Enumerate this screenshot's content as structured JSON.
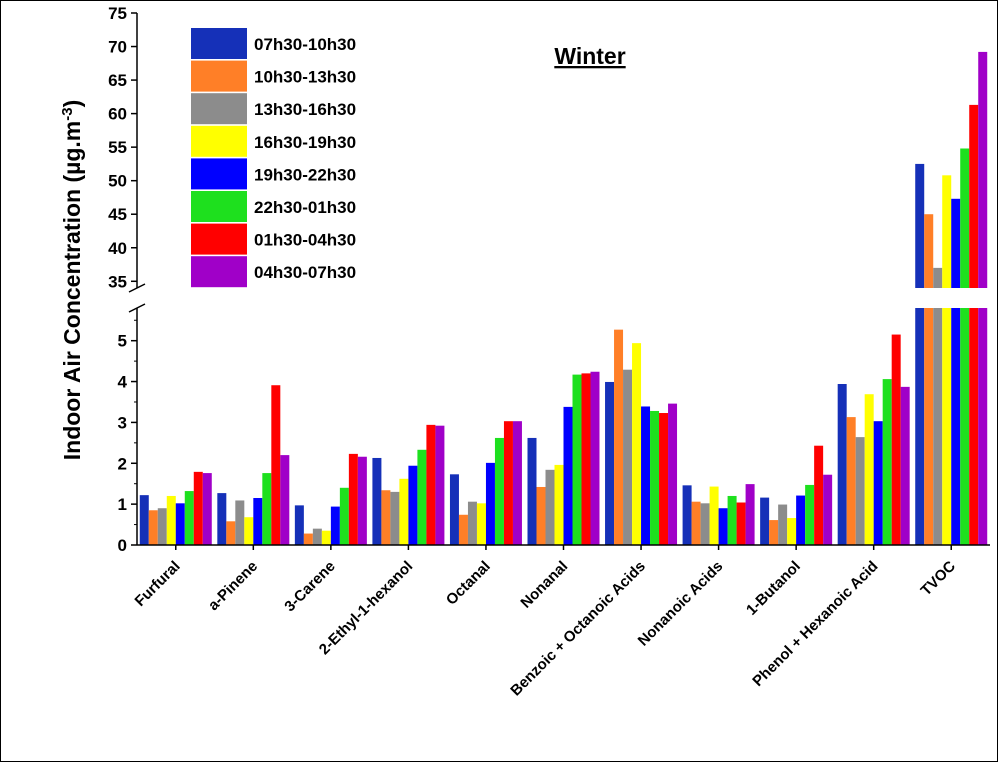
{
  "chart_data": {
    "type": "bar",
    "title": "Winter",
    "ylabel": "Indoor Air Concentration (µg.m",
    "ylabel_superscript": "-3",
    "ylabel_suffix": ")",
    "y_axis_break": true,
    "ylim_lower": [
      0,
      5.8
    ],
    "ylim_upper": [
      34,
      75
    ],
    "yticks_lower": [
      0,
      1,
      2,
      3,
      4,
      5
    ],
    "yticks_upper": [
      35,
      40,
      45,
      50,
      55,
      60,
      65,
      70,
      75
    ],
    "legend_position": "top-left",
    "categories": [
      "Furfural",
      "a-Pinene",
      "3-Carene",
      "2-Ethyl-1-hexanol",
      "Octanal",
      "Nonanal",
      "Benzoic + Octanoic Acids",
      "Nonanoic Acids",
      "1-Butanol",
      "Phenol + Hexanoic Acid",
      "TVOC"
    ],
    "series": [
      {
        "name": "07h30-10h30",
        "color": "#1530b8",
        "values": [
          1.22,
          1.27,
          0.97,
          2.13,
          1.73,
          2.62,
          3.99,
          1.46,
          1.16,
          3.94,
          52.5
        ]
      },
      {
        "name": "10h30-13h30",
        "color": "#ff7f27",
        "values": [
          0.85,
          0.58,
          0.28,
          1.34,
          0.74,
          1.42,
          5.27,
          1.06,
          0.61,
          3.13,
          45.0
        ]
      },
      {
        "name": "13h30-16h30",
        "color": "#8c8c8c",
        "values": [
          0.9,
          1.09,
          0.4,
          1.3,
          1.06,
          1.84,
          4.29,
          1.02,
          0.99,
          2.64,
          37.0
        ]
      },
      {
        "name": "16h30-19h30",
        "color": "#ffff00",
        "values": [
          1.2,
          0.68,
          0.35,
          1.62,
          1.02,
          1.96,
          4.94,
          1.43,
          0.66,
          3.69,
          50.8
        ]
      },
      {
        "name": "19h30-22h30",
        "color": "#0000ff",
        "values": [
          1.02,
          1.15,
          0.94,
          1.94,
          2.01,
          3.38,
          3.39,
          0.9,
          1.21,
          3.03,
          47.3
        ]
      },
      {
        "name": "22h30-01h30",
        "color": "#1ee01e",
        "values": [
          1.32,
          1.76,
          1.4,
          2.33,
          2.62,
          4.17,
          3.28,
          1.2,
          1.47,
          4.06,
          54.8
        ]
      },
      {
        "name": "01h30-04h30",
        "color": "#ff0000",
        "values": [
          1.79,
          3.91,
          2.23,
          2.94,
          3.03,
          4.2,
          3.23,
          1.04,
          2.43,
          5.15,
          61.3
        ]
      },
      {
        "name": "04h30-07h30",
        "color": "#a000c8",
        "values": [
          1.76,
          2.2,
          2.16,
          2.92,
          3.03,
          4.24,
          3.46,
          1.49,
          1.72,
          3.87,
          69.2
        ]
      }
    ]
  }
}
